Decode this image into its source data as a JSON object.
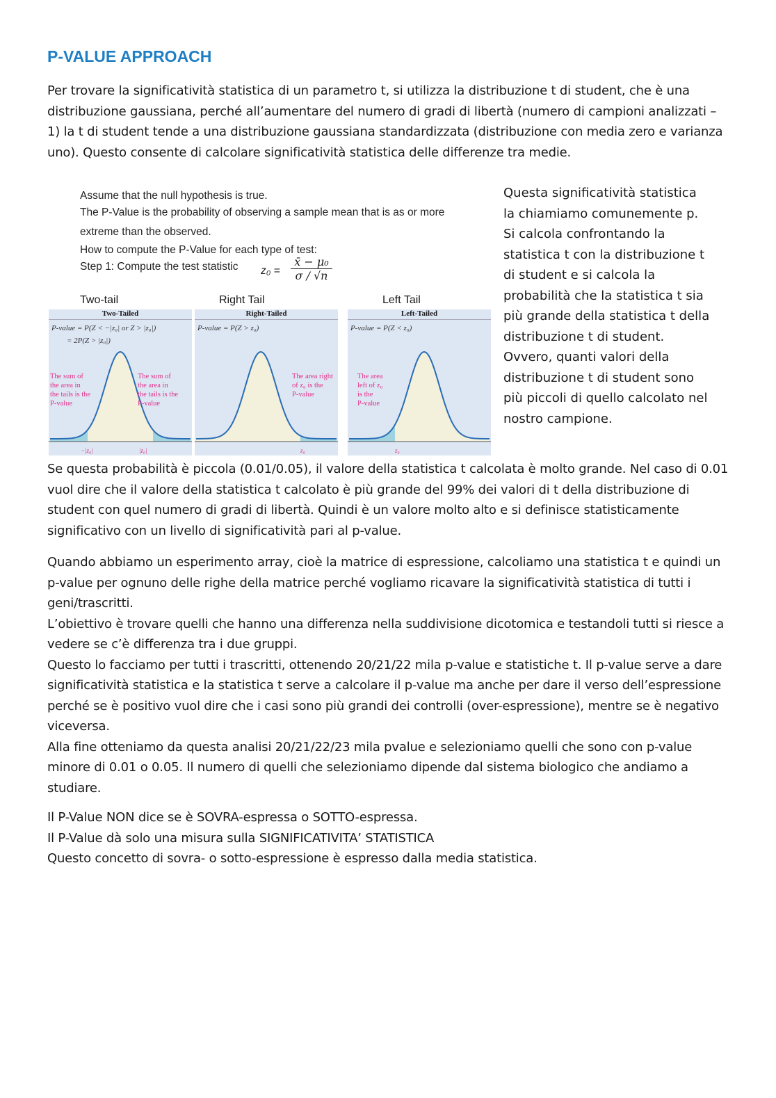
{
  "title": "P-VALUE APPROACH",
  "intro": "Per trovare la significatività statistica di un parametro t, si utilizza la distribuzione t di student, che è una distribuzione gaussiana, perché all’aumentare del numero di gradi di libertà (numero di campioni analizzati – 1) la t di student tende a una distribuzione gaussiana standardizzata (distribuzione con media zero e varianza uno). Questo consente di calcolare significatività statistica delle differenze tra medie.",
  "figure": {
    "line1": "Assume that the null hypothesis is true.",
    "line2": "The P-Value is the probability of observing a sample mean that is as or more",
    "line3": "extreme than the observed.",
    "line4": "How to compute the P-Value for each type of test:",
    "line5": "Step 1:  Compute the test statistic",
    "formula_lhs": "z₀ =",
    "formula_num": "x̄ − μ₀",
    "formula_den": "σ / √n",
    "panels": [
      {
        "heading": "Two-tail",
        "title": "Two-Tailed",
        "formula": "P-value = P(Z < −|z₀| or Z > |z₀|)\n        = 2P(Z > |z₀|)",
        "note_left": "The sum of\nthe area in\nthe tails is the\nP-value",
        "note_right": "The sum of\nthe area in\nthe tails is the\nP-value",
        "tick_left": "−|z₀|",
        "tick_right": "|z₀|"
      },
      {
        "heading": "Right Tail",
        "title": "Right-Tailed",
        "formula": "P-value = P(Z > z₀)",
        "note_right": "The area right\nof z₀ is the\nP-value",
        "tick_right": "z₀"
      },
      {
        "heading": "Left Tail",
        "title": "Left-Tailed",
        "formula": "P-value = P(Z < z₀)",
        "note_left": "The area\nleft of z₀\nis the\nP-value",
        "tick_left": "z₀"
      }
    ],
    "colors": {
      "panel_bg": "#dde6f3",
      "curve": "#2a6db5",
      "body_fill": "#f3f0dc",
      "tail_fill": "#9fd3e0",
      "annotation": "#e0308a"
    }
  },
  "side_text": "Questa significatività statistica\nla chiamiamo comunemente p.\nSi calcola confrontando la\nstatistica t con la distribuzione t\ndi student e si calcola la\nprobabilità che la statistica t sia\npiù grande della statistica t della\ndistribuzione t di student.\nOvvero, quanti valori della\ndistribuzione t di student sono\npiù piccoli di quello calcolato nel\nnostro campione.",
  "para2": "Se questa probabilità è piccola (0.01/0.05), il valore della statistica t calcolata è molto grande. Nel caso di 0.01 vuol dire che il valore della statistica t calcolato è più grande del 99% dei valori di t della distribuzione di student con quel numero di gradi di libertà. Quindi è un valore molto alto e si definisce statisticamente significativo con un livello di significatività pari al p-value.",
  "para3": [
    "Quando abbiamo un esperimento array, cioè la matrice di espressione, calcoliamo una statistica t e quindi un p-value per ognuno delle righe della matrice perché vogliamo ricavare la significatività statistica di tutti i geni/trascritti.",
    "L’obiettivo è trovare quelli che hanno una differenza nella suddivisione dicotomica e testandoli tutti si riesce a vedere se c’è differenza tra i due gruppi.",
    "Questo lo facciamo per tutti i trascritti, ottenendo 20/21/22 mila p-value e statistiche t. Il p-value serve a dare significatività statistica e la statistica t serve a calcolare il p-value ma anche per dare il verso dell’espressione perché se è positivo vuol dire che i casi sono più grandi dei controlli (over-espressione), mentre se è negativo viceversa.",
    "Alla fine otteniamo da questa analisi 20/21/22/23 mila pvalue e selezioniamo quelli che sono con p-value minore di 0.01 o 0.05. Il numero di quelli che selezioniamo dipende dal sistema biologico che andiamo a studiare."
  ],
  "para4": [
    "Il P-Value NON dice se è SOVRA-espressa o SOTTO-espressa.",
    "Il P-Value dà solo una misura sulla SIGNIFICATIVITA’ STATISTICA",
    "Questo concetto di sovra- o sotto-espressione è espresso dalla media statistica."
  ]
}
